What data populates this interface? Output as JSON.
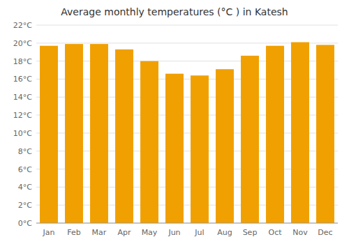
{
  "chart_data": {
    "type": "bar",
    "title": "Average monthly temperatures (°C ) in Katesh",
    "categories": [
      "Jan",
      "Feb",
      "Mar",
      "Apr",
      "May",
      "Jun",
      "Jul",
      "Aug",
      "Sep",
      "Oct",
      "Nov",
      "Dec"
    ],
    "values": [
      19.7,
      19.9,
      19.9,
      19.3,
      18.0,
      16.6,
      16.4,
      17.1,
      18.6,
      19.7,
      20.1,
      19.8
    ],
    "color": "#F0A000",
    "ylim": [
      0,
      22
    ],
    "yticks": [
      {
        "value": 0,
        "label": "0°C"
      },
      {
        "value": 2,
        "label": "2°C"
      },
      {
        "value": 4,
        "label": "4°C"
      },
      {
        "value": 6,
        "label": "6°C"
      },
      {
        "value": 8,
        "label": "8°C"
      },
      {
        "value": 10,
        "label": "10°C"
      },
      {
        "value": 12,
        "label": "12°C"
      },
      {
        "value": 14,
        "label": "14°C"
      },
      {
        "value": 16,
        "label": "16°C"
      },
      {
        "value": 18,
        "label": "18°C"
      },
      {
        "value": 20,
        "label": "20°C"
      },
      {
        "value": 22,
        "label": "22°C"
      }
    ],
    "grid": true
  }
}
